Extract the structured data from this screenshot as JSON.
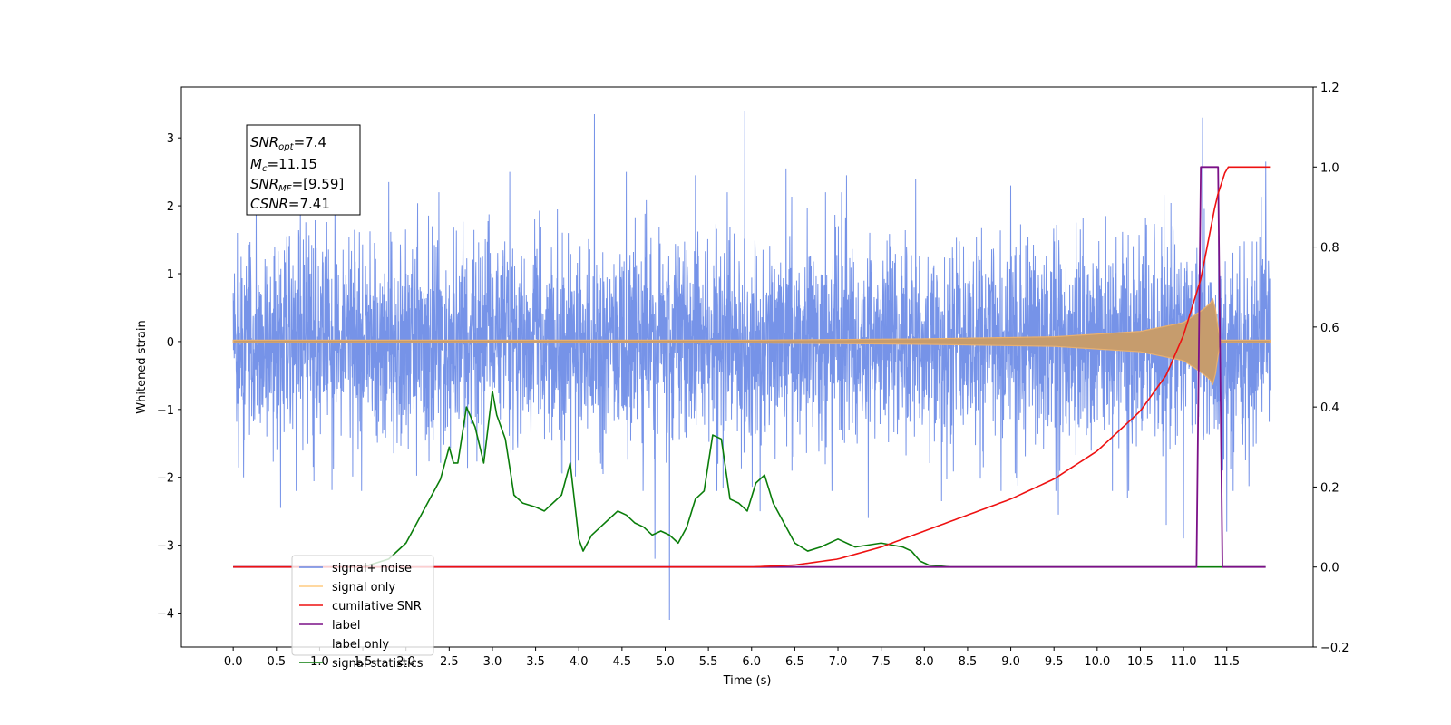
{
  "chart_data": {
    "type": "line",
    "title": "",
    "xlabel": "Time (s)",
    "ylabel": "Whitened strain",
    "xlim": [
      -0.6,
      12.5
    ],
    "ylim": [
      -4.5,
      3.75
    ],
    "y2lim": [
      -0.2,
      1.2
    ],
    "grid": false,
    "legend_position": "lower-left",
    "x_ticks": [
      "0.0",
      "0.5",
      "1.0",
      "1.5",
      "2.0",
      "2.5",
      "3.0",
      "3.5",
      "4.0",
      "4.5",
      "5.0",
      "5.5",
      "6.0",
      "6.5",
      "7.0",
      "7.5",
      "8.0",
      "8.5",
      "9.0",
      "9.5",
      "10.0",
      "10.5",
      "11.0",
      "11.5"
    ],
    "y_ticks": [
      "3",
      "2",
      "1",
      "0",
      "−1",
      "−2",
      "−3",
      "−4"
    ],
    "y2_ticks": [
      "1.2",
      "1.0",
      "0.8",
      "0.6",
      "0.4",
      "0.2",
      "0.0",
      "−0.2"
    ],
    "annotation": {
      "snr_opt": {
        "main": "SNR",
        "sub": "opt",
        "value": "=7.4"
      },
      "mc": {
        "main": "M",
        "sub": "c",
        "value": "=11.15"
      },
      "snr_mf": {
        "main": "SNR",
        "sub": "MF",
        "value": "=[9.59]"
      },
      "csnr": {
        "main": "CSNR",
        "value": "=7.41"
      }
    },
    "series": [
      {
        "name": "signal+ noise",
        "axis": "left",
        "color": "#6a8ae6",
        "x_range": [
          0.0,
          12.0
        ],
        "sigma": 0.75,
        "spikes": [
          [
            0.05,
            1.6
          ],
          [
            0.12,
            -2.0
          ],
          [
            0.55,
            -2.45
          ],
          [
            1.8,
            2.35
          ],
          [
            3.2,
            2.5
          ],
          [
            4.18,
            3.35
          ],
          [
            4.28,
            -1.95
          ],
          [
            4.55,
            2.5
          ],
          [
            4.88,
            -3.2
          ],
          [
            5.05,
            -4.1
          ],
          [
            5.35,
            2.45
          ],
          [
            5.92,
            3.4
          ],
          [
            6.1,
            -2.5
          ],
          [
            6.4,
            2.55
          ],
          [
            7.1,
            2.45
          ],
          [
            7.35,
            -2.6
          ],
          [
            7.9,
            2.4
          ],
          [
            8.2,
            -2.35
          ],
          [
            9.0,
            2.3
          ],
          [
            9.55,
            -2.55
          ],
          [
            10.1,
            1.85
          ],
          [
            10.35,
            -2.3
          ],
          [
            10.8,
            -2.7
          ],
          [
            11.0,
            -2.9
          ],
          [
            11.22,
            3.3
          ],
          [
            11.5,
            -2.8
          ],
          [
            11.95,
            2.65
          ]
        ]
      },
      {
        "name": "signal only",
        "axis": "left",
        "color": "#c69c6d",
        "x": [
          0.0,
          6.0,
          8.0,
          9.5,
          10.5,
          11.0,
          11.2,
          11.3,
          11.35,
          11.42,
          12.0
        ],
        "envelope": [
          0.02,
          0.02,
          0.04,
          0.07,
          0.15,
          0.28,
          0.45,
          0.55,
          0.65,
          0.02,
          0.02
        ]
      },
      {
        "name": "cumilative SNR",
        "axis": "right",
        "color": "#ee1111",
        "x": [
          0.0,
          6.0,
          6.5,
          7.0,
          7.5,
          8.0,
          8.5,
          9.0,
          9.5,
          10.0,
          10.5,
          10.8,
          11.0,
          11.2,
          11.3,
          11.38,
          11.5,
          12.0
        ],
        "values": [
          0.0,
          0.0,
          0.005,
          0.02,
          0.05,
          0.09,
          0.13,
          0.17,
          0.22,
          0.29,
          0.39,
          0.48,
          0.58,
          0.72,
          0.83,
          0.92,
          1.0,
          1.0
        ]
      },
      {
        "name": "label",
        "axis": "right",
        "color": "#7b1087",
        "x": [
          0.0,
          11.15,
          11.2,
          11.4,
          11.45,
          11.95
        ],
        "values": [
          0.0,
          0.0,
          1.0,
          1.0,
          0.0,
          0.0
        ]
      },
      {
        "name": "label only",
        "axis": "right",
        "color": "#9a9a9a",
        "x": [],
        "values": []
      },
      {
        "name": "signal statistics",
        "axis": "right",
        "color": "#0a7d0a",
        "x": [
          0.0,
          1.0,
          1.5,
          1.8,
          2.0,
          2.1,
          2.2,
          2.3,
          2.4,
          2.5,
          2.55,
          2.6,
          2.7,
          2.8,
          2.9,
          3.0,
          3.05,
          3.15,
          3.25,
          3.35,
          3.5,
          3.6,
          3.8,
          3.9,
          4.0,
          4.05,
          4.15,
          4.25,
          4.35,
          4.45,
          4.55,
          4.65,
          4.75,
          4.85,
          4.95,
          5.05,
          5.15,
          5.25,
          5.35,
          5.45,
          5.55,
          5.65,
          5.75,
          5.85,
          5.95,
          6.05,
          6.15,
          6.25,
          6.35,
          6.5,
          6.65,
          6.8,
          7.0,
          7.2,
          7.5,
          7.75,
          7.85,
          7.95,
          8.05,
          8.3,
          9.0,
          9.5,
          11.95
        ],
        "values": [
          0.0,
          0.0,
          0.0,
          0.02,
          0.06,
          0.1,
          0.14,
          0.18,
          0.22,
          0.3,
          0.26,
          0.26,
          0.4,
          0.35,
          0.26,
          0.44,
          0.38,
          0.32,
          0.18,
          0.16,
          0.15,
          0.14,
          0.18,
          0.26,
          0.07,
          0.04,
          0.08,
          0.1,
          0.12,
          0.14,
          0.13,
          0.11,
          0.1,
          0.08,
          0.09,
          0.08,
          0.06,
          0.1,
          0.17,
          0.19,
          0.33,
          0.32,
          0.17,
          0.16,
          0.14,
          0.21,
          0.23,
          0.16,
          0.12,
          0.06,
          0.04,
          0.05,
          0.07,
          0.05,
          0.06,
          0.05,
          0.04,
          0.015,
          0.005,
          0.0,
          0.0,
          0.0,
          0.0
        ]
      }
    ]
  }
}
